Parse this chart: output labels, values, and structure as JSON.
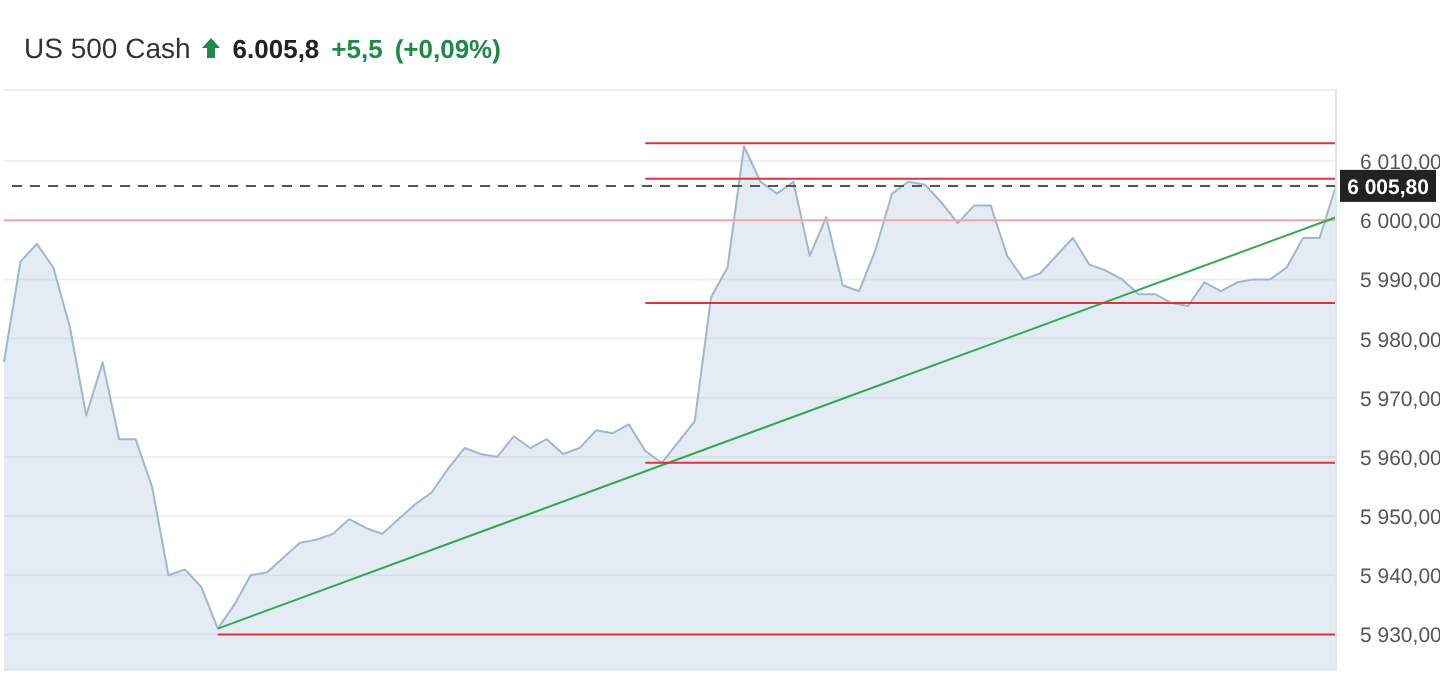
{
  "chart_data": {
    "type": "area",
    "title": "US 500 Cash",
    "annotations": [
      "6.005,8",
      "+5,5",
      "(+0,09%)"
    ],
    "categories": [
      null,
      null,
      null,
      null,
      null,
      null,
      null,
      null,
      null,
      null,
      null,
      null,
      null,
      null,
      null,
      null,
      null,
      null,
      null,
      null,
      null,
      null,
      null,
      null,
      null,
      null,
      null,
      null,
      null,
      null,
      null,
      null,
      null,
      null,
      null,
      null,
      null,
      null,
      null,
      null,
      null,
      null,
      null,
      null,
      null,
      null,
      null,
      null,
      null,
      null,
      null,
      null,
      null,
      null,
      null,
      null,
      null,
      null,
      null,
      null,
      null,
      null,
      null,
      null,
      null,
      null,
      null,
      null,
      null,
      null,
      null,
      null,
      null,
      null,
      null,
      null,
      null,
      null,
      null,
      null,
      null,
      null
    ],
    "ylim": [
      5924,
      6022
    ],
    "yticks": [
      {
        "value": 5930,
        "label": "5 930,00"
      },
      {
        "value": 5940,
        "label": "5 940,00"
      },
      {
        "value": 5950,
        "label": "5 950,00"
      },
      {
        "value": 5960,
        "label": "5 960,00"
      },
      {
        "value": 5970,
        "label": "5 970,00"
      },
      {
        "value": 5980,
        "label": "5 980,00"
      },
      {
        "value": 5990,
        "label": "5 990,00"
      },
      {
        "value": 6000,
        "label": "6 000,00"
      },
      {
        "value": 6010,
        "label": "6 010,00"
      }
    ],
    "tick_labels": "y",
    "grid": "y",
    "series": [
      {
        "color": "#9fb8d0",
        "values": [
          5976,
          5993,
          5996,
          5992,
          5982,
          5967,
          5976,
          5963,
          5963,
          5955,
          5940,
          5941,
          5938,
          5931,
          5935,
          5940,
          5940.5,
          5943,
          5945.5,
          5946,
          5947,
          5949.5,
          5948,
          5947,
          5949.5,
          5952,
          5954,
          5958,
          5961.5,
          5960.5,
          5960,
          5963.5,
          5961.5,
          5963,
          5960.5,
          5961.5,
          5964.5,
          5964,
          5965.5,
          5961,
          5959,
          5962.5,
          5966,
          5987,
          5992,
          6012.5,
          6006.5,
          6004.5,
          6006.5,
          5994,
          6000.5,
          5989,
          5988,
          5995,
          6004.5,
          6006.5,
          6006,
          6003,
          5999.5,
          6002.5,
          6002.5,
          5994,
          5990,
          5991,
          5994,
          5997,
          5992.5,
          5991.5,
          5990,
          5987.5,
          5987.5,
          5986,
          5985.5,
          5989.5,
          5988,
          5989.5,
          5990,
          5990,
          5992,
          5997,
          5997,
          6005.8
        ]
      },
      {
        "type": "line",
        "color": "#2fa84f",
        "values": [
          null,
          null,
          null,
          null,
          null,
          null,
          null,
          null,
          null,
          null,
          null,
          null,
          null,
          5931,
          null,
          null,
          null,
          null,
          null,
          null,
          null,
          null,
          null,
          null,
          null,
          null,
          null,
          null,
          null,
          null,
          null,
          null,
          null,
          null,
          null,
          null,
          null,
          null,
          null,
          null,
          null,
          null,
          null,
          null,
          null,
          null,
          null,
          null,
          null,
          null,
          null,
          null,
          null,
          null,
          null,
          null,
          null,
          null,
          null,
          null,
          null,
          null,
          null,
          null,
          null,
          null,
          null,
          null,
          null,
          null,
          null,
          null,
          null,
          null,
          null,
          null,
          null,
          null,
          null,
          null,
          null,
          6000.5
        ]
      },
      {
        "type": "line",
        "color": "#d9363e",
        "values": [
          null,
          null,
          null,
          null,
          null,
          null,
          null,
          null,
          null,
          null,
          null,
          null,
          null,
          5930,
          null,
          null,
          null,
          null,
          null,
          null,
          null,
          null,
          null,
          null,
          null,
          null,
          null,
          null,
          null,
          null,
          null,
          null,
          null,
          null,
          null,
          null,
          null,
          null,
          null,
          null,
          null,
          null,
          null,
          null,
          null,
          null,
          null,
          null,
          null,
          null,
          null,
          null,
          null,
          null,
          null,
          null,
          null,
          null,
          null,
          null,
          null,
          null,
          null,
          null,
          null,
          null,
          null,
          null,
          null,
          null,
          null,
          null,
          null,
          null,
          null,
          null,
          null,
          null,
          null,
          null,
          null,
          5930
        ]
      },
      {
        "type": "line",
        "color": "#d9363e",
        "values": [
          null,
          null,
          null,
          null,
          null,
          null,
          null,
          null,
          null,
          null,
          null,
          null,
          null,
          null,
          null,
          null,
          null,
          null,
          null,
          null,
          null,
          null,
          null,
          null,
          null,
          null,
          null,
          null,
          null,
          null,
          null,
          null,
          null,
          null,
          null,
          null,
          null,
          null,
          null,
          5959,
          null,
          null,
          null,
          null,
          null,
          null,
          null,
          null,
          null,
          null,
          null,
          null,
          null,
          null,
          null,
          null,
          null,
          null,
          null,
          null,
          null,
          null,
          null,
          null,
          null,
          null,
          null,
          null,
          null,
          null,
          null,
          null,
          null,
          null,
          null,
          null,
          null,
          null,
          null,
          null,
          null,
          5959
        ]
      },
      {
        "type": "line",
        "color": "#d9363e",
        "values": [
          null,
          null,
          null,
          null,
          null,
          null,
          null,
          null,
          null,
          null,
          null,
          null,
          null,
          null,
          null,
          null,
          null,
          null,
          null,
          null,
          null,
          null,
          null,
          null,
          null,
          null,
          null,
          null,
          null,
          null,
          null,
          null,
          null,
          null,
          null,
          null,
          null,
          null,
          null,
          5986,
          null,
          null,
          null,
          null,
          null,
          null,
          null,
          null,
          null,
          null,
          null,
          null,
          null,
          null,
          null,
          null,
          null,
          null,
          null,
          null,
          null,
          null,
          null,
          null,
          null,
          null,
          null,
          null,
          null,
          null,
          null,
          null,
          null,
          null,
          null,
          null,
          null,
          null,
          null,
          null,
          null,
          5986
        ]
      },
      {
        "type": "line",
        "color": "#d9363e",
        "values": [
          null,
          null,
          null,
          null,
          null,
          null,
          null,
          null,
          null,
          null,
          null,
          null,
          null,
          null,
          null,
          null,
          null,
          null,
          null,
          null,
          null,
          null,
          null,
          null,
          null,
          null,
          null,
          null,
          null,
          null,
          null,
          null,
          null,
          null,
          null,
          null,
          null,
          null,
          null,
          6007,
          null,
          null,
          null,
          null,
          null,
          null,
          null,
          null,
          null,
          null,
          null,
          null,
          null,
          null,
          null,
          null,
          null,
          null,
          null,
          null,
          null,
          null,
          null,
          null,
          null,
          null,
          null,
          null,
          null,
          null,
          null,
          null,
          null,
          null,
          null,
          null,
          null,
          null,
          null,
          null,
          null,
          6007
        ]
      },
      {
        "type": "line",
        "color": "#d9363e",
        "values": [
          null,
          null,
          null,
          null,
          null,
          null,
          null,
          null,
          null,
          null,
          null,
          null,
          null,
          null,
          null,
          null,
          null,
          null,
          null,
          null,
          null,
          null,
          null,
          null,
          null,
          null,
          null,
          null,
          null,
          null,
          null,
          null,
          null,
          null,
          null,
          null,
          null,
          null,
          null,
          6013,
          null,
          null,
          null,
          null,
          null,
          null,
          null,
          null,
          null,
          null,
          null,
          null,
          null,
          null,
          null,
          null,
          null,
          null,
          null,
          null,
          null,
          null,
          null,
          null,
          null,
          null,
          null,
          null,
          null,
          null,
          null,
          null,
          null,
          null,
          null,
          null,
          null,
          null,
          null,
          null,
          null,
          6013
        ]
      }
    ],
    "ref_lines": [
      {
        "axis": "y",
        "value": 6000,
        "color": "#f2a9a9",
        "line_style": "solid"
      },
      {
        "axis": "y",
        "value": 6005.8,
        "label": "6 005,80",
        "color": "#555555",
        "line_style": "dashed"
      }
    ]
  }
}
